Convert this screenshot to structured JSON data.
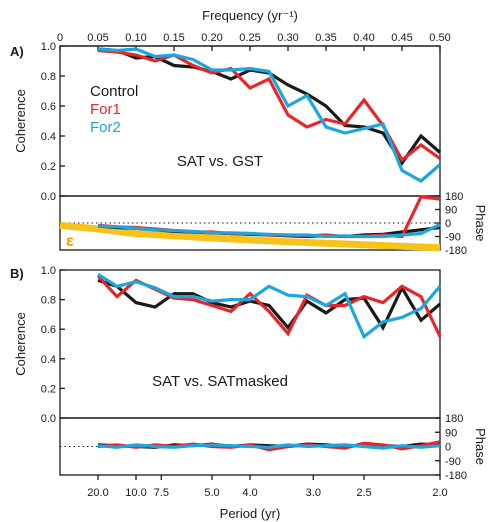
{
  "chart_data": {
    "type": "line",
    "top_axis": {
      "title": "Frequency (yr⁻¹)",
      "ticks": [
        0,
        0.05,
        0.1,
        0.15,
        0.2,
        0.25,
        0.3,
        0.35,
        0.4,
        0.45,
        0.5
      ],
      "tick_labels": [
        "0",
        "0.05",
        "0.10",
        "0.15",
        "0.20",
        "0.25",
        "0.30",
        "0.35",
        "0.40",
        "0.45",
        "0.50"
      ],
      "range": [
        0,
        0.5
      ]
    },
    "bottom_axis": {
      "title": "Period (yr)",
      "ticks": [
        0.05,
        0.1,
        0.1333,
        0.2,
        0.25,
        0.3333,
        0.4,
        0.5
      ],
      "tick_labels": [
        "20.0",
        "10.0",
        "7.5",
        "5.0",
        "4.0",
        "3.0",
        "2.5",
        "2.0"
      ]
    },
    "coherence_axis": {
      "label": "Coherence",
      "ylim": [
        0,
        1
      ],
      "ticks": [
        0,
        0.2,
        0.4,
        0.6,
        0.8,
        1.0
      ],
      "tick_labels": [
        "0.0",
        "0.2",
        "0.4",
        "0.6",
        "0.8",
        "1.0"
      ]
    },
    "phase_axis": {
      "label": "Phase",
      "ylim": [
        -180,
        180
      ],
      "ticks": [
        180,
        90,
        0,
        -90,
        -180
      ],
      "tick_labels": [
        "180",
        "90",
        "0",
        "-90",
        "-180"
      ],
      "zero_line": "dotted"
    },
    "series_styles": [
      {
        "name": "Control",
        "color": "#1a1a1a"
      },
      {
        "name": "For1",
        "color": "#e8262a"
      },
      {
        "name": "For2",
        "color": "#1ca6e0"
      }
    ],
    "epsilon": {
      "label": "ε",
      "color": "#f7c21a"
    },
    "panels": [
      {
        "letter": "A)",
        "title": "SAT vs. GST",
        "legend": [
          "Control",
          "For1",
          "For2"
        ],
        "coherence": {
          "x": [
            0.05,
            0.075,
            0.1,
            0.125,
            0.15,
            0.175,
            0.2,
            0.225,
            0.25,
            0.275,
            0.3,
            0.325,
            0.35,
            0.375,
            0.4,
            0.425,
            0.45,
            0.475,
            0.5
          ],
          "series": [
            {
              "name": "Control",
              "values": [
                0.98,
                0.97,
                0.92,
                0.93,
                0.87,
                0.86,
                0.83,
                0.78,
                0.84,
                0.82,
                0.74,
                0.68,
                0.6,
                0.47,
                0.46,
                0.42,
                0.22,
                0.4,
                0.29
              ]
            },
            {
              "name": "For1",
              "values": [
                0.97,
                0.96,
                0.94,
                0.9,
                0.94,
                0.87,
                0.82,
                0.85,
                0.72,
                0.78,
                0.54,
                0.46,
                0.51,
                0.48,
                0.64,
                0.47,
                0.24,
                0.34,
                0.25
              ]
            },
            {
              "name": "For2",
              "values": [
                0.98,
                0.97,
                0.98,
                0.93,
                0.94,
                0.91,
                0.84,
                0.84,
                0.85,
                0.83,
                0.6,
                0.67,
                0.46,
                0.42,
                0.45,
                0.48,
                0.17,
                0.1,
                0.21
              ]
            }
          ]
        },
        "phase": {
          "x": [
            0.05,
            0.075,
            0.1,
            0.125,
            0.15,
            0.175,
            0.2,
            0.225,
            0.25,
            0.275,
            0.3,
            0.325,
            0.35,
            0.375,
            0.4,
            0.425,
            0.45,
            0.475,
            0.5
          ],
          "series": [
            {
              "name": "Control",
              "values": [
                -20,
                -30,
                -35,
                -45,
                -55,
                -60,
                -65,
                -70,
                -75,
                -80,
                -85,
                -90,
                -85,
                -90,
                -80,
                -75,
                -60,
                -45,
                -30
              ]
            },
            {
              "name": "For1",
              "values": [
                -15,
                -25,
                -30,
                -40,
                -50,
                -60,
                -60,
                -70,
                -70,
                -80,
                -80,
                -85,
                -80,
                -90,
                -90,
                -80,
                -90,
                175,
                160
              ]
            },
            {
              "name": "For2",
              "values": [
                -20,
                -25,
                -35,
                -45,
                -50,
                -55,
                -65,
                -65,
                -70,
                -75,
                -80,
                -80,
                -90,
                -85,
                -90,
                -90,
                -80,
                -70,
                -10
              ]
            }
          ],
          "epsilon": {
            "x": [
              0.0,
              0.05,
              0.1,
              0.2,
              0.3,
              0.4,
              0.5
            ],
            "values": [
              -15,
              -40,
              -70,
              -100,
              -125,
              -145,
              -165
            ]
          }
        }
      },
      {
        "letter": "B)",
        "title": "SAT vs. SATmasked",
        "legend": [],
        "coherence": {
          "x": [
            0.05,
            0.075,
            0.1,
            0.125,
            0.15,
            0.175,
            0.2,
            0.225,
            0.25,
            0.275,
            0.3,
            0.325,
            0.35,
            0.375,
            0.4,
            0.425,
            0.45,
            0.475,
            0.5
          ],
          "series": [
            {
              "name": "Control",
              "values": [
                0.93,
                0.89,
                0.78,
                0.75,
                0.84,
                0.84,
                0.78,
                0.75,
                0.79,
                0.76,
                0.61,
                0.79,
                0.71,
                0.8,
                0.81,
                0.61,
                0.88,
                0.66,
                0.77
              ]
            },
            {
              "name": "For1",
              "values": [
                0.96,
                0.82,
                0.93,
                0.87,
                0.81,
                0.8,
                0.76,
                0.72,
                0.84,
                0.72,
                0.57,
                0.83,
                0.76,
                0.76,
                0.82,
                0.78,
                0.89,
                0.82,
                0.55
              ]
            },
            {
              "name": "For2",
              "values": [
                0.97,
                0.89,
                0.92,
                0.88,
                0.82,
                0.82,
                0.79,
                0.8,
                0.8,
                0.89,
                0.83,
                0.82,
                0.76,
                0.84,
                0.55,
                0.65,
                0.68,
                0.74,
                0.89
              ]
            }
          ]
        },
        "phase": {
          "x": [
            0.05,
            0.075,
            0.1,
            0.125,
            0.15,
            0.175,
            0.2,
            0.225,
            0.25,
            0.275,
            0.3,
            0.325,
            0.35,
            0.375,
            0.4,
            0.425,
            0.45,
            0.475,
            0.5
          ],
          "series": [
            {
              "name": "Control",
              "values": [
                10,
                5,
                0,
                -5,
                10,
                5,
                15,
                0,
                10,
                5,
                0,
                15,
                10,
                0,
                10,
                5,
                0,
                15,
                10
              ]
            },
            {
              "name": "For1",
              "values": [
                0,
                10,
                -5,
                10,
                0,
                15,
                0,
                -5,
                10,
                -20,
                0,
                10,
                0,
                -10,
                20,
                10,
                -15,
                5,
                30
              ]
            },
            {
              "name": "For2",
              "values": [
                5,
                -5,
                10,
                0,
                -5,
                5,
                10,
                5,
                0,
                -5,
                10,
                0,
                5,
                10,
                0,
                -10,
                5,
                -5,
                5
              ]
            }
          ]
        }
      }
    ]
  }
}
